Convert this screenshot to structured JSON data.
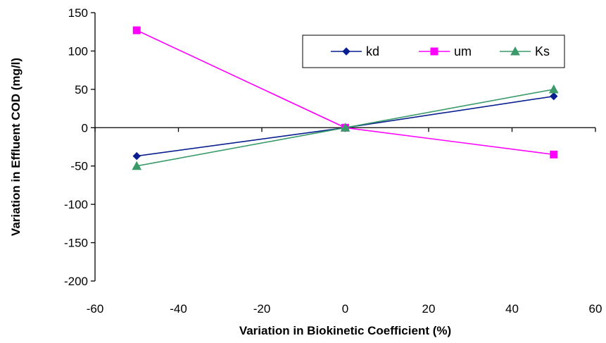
{
  "chart_data": {
    "type": "line",
    "xlabel": "Variation in Biokinetic Coefficient (%)",
    "ylabel": "Variation in Effluent COD (mg/l)",
    "xlim": [
      -60,
      60
    ],
    "ylim": [
      -200,
      150
    ],
    "xticks": [
      -60,
      -40,
      -20,
      0,
      20,
      40,
      60
    ],
    "yticks": [
      150,
      100,
      50,
      0,
      -50,
      -100,
      -150,
      -200
    ],
    "grid": false,
    "legend_position": "top-right",
    "x": [
      -50,
      0,
      50
    ],
    "series": [
      {
        "name": "kd",
        "values": [
          -37,
          0,
          41
        ],
        "color": "#0a1f8f",
        "marker": "diamond"
      },
      {
        "name": "um",
        "values": [
          127,
          0,
          -35
        ],
        "color": "#ff00ff",
        "marker": "square"
      },
      {
        "name": "Ks",
        "values": [
          -50,
          0,
          50
        ],
        "color": "#3a9a6a",
        "marker": "triangle"
      }
    ]
  }
}
